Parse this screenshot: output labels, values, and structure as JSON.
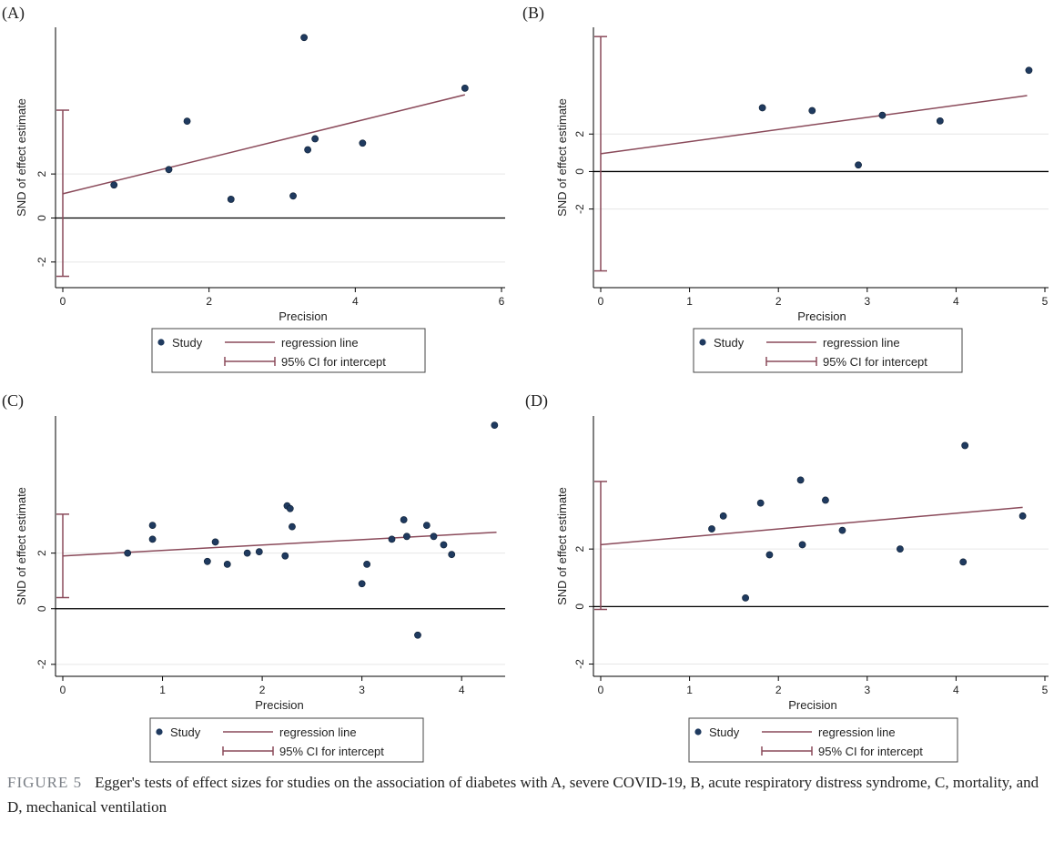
{
  "caption": {
    "label": "FIGURE 5",
    "text": "Egger's tests of effect sizes for studies on the association of diabetes with A, severe COVID-19, B, acute respiratory distress syndrome, C, mortality, and D, mechanical ventilation"
  },
  "colors": {
    "point": "#1f3a5f",
    "regression": "#8a4a5a",
    "ci": "#8a4a5a",
    "zero_line": "#000000",
    "grid": "#e6e6e6",
    "legend_border": "#444444"
  },
  "legend": {
    "study": "Study",
    "regression": "regression line",
    "ci": "95% CI for intercept"
  },
  "chart_data": [
    {
      "panel": "(A)",
      "type": "scatter",
      "xlabel": "Precision",
      "ylabel": "SND of effect estimate",
      "xlim": [
        0,
        6
      ],
      "ylim": [
        -3,
        8.5
      ],
      "xticks": [
        0,
        2,
        4,
        6
      ],
      "yticks": [
        -2,
        0,
        2
      ],
      "grid": true,
      "points": [
        {
          "x": 0.7,
          "y": 1.5
        },
        {
          "x": 1.45,
          "y": 2.2
        },
        {
          "x": 1.7,
          "y": 4.4
        },
        {
          "x": 2.3,
          "y": 0.85
        },
        {
          "x": 3.15,
          "y": 1.0
        },
        {
          "x": 3.3,
          "y": 8.2
        },
        {
          "x": 3.35,
          "y": 3.1
        },
        {
          "x": 3.45,
          "y": 3.6
        },
        {
          "x": 4.1,
          "y": 3.4
        },
        {
          "x": 5.5,
          "y": 5.9
        }
      ],
      "regression": {
        "x": [
          0,
          5.5
        ],
        "y": [
          1.1,
          5.6
        ]
      },
      "ci": [
        -2.65,
        4.9
      ]
    },
    {
      "panel": "(B)",
      "type": "scatter",
      "xlabel": "Precision",
      "ylabel": "SND of effect estimate",
      "xlim": [
        0,
        5
      ],
      "ylim": [
        -6,
        7.5
      ],
      "xticks": [
        0,
        1,
        2,
        3,
        4,
        5
      ],
      "yticks": [
        -2,
        0,
        2
      ],
      "grid": true,
      "points": [
        {
          "x": 1.82,
          "y": 3.4
        },
        {
          "x": 2.38,
          "y": 3.25
        },
        {
          "x": 2.9,
          "y": 0.35
        },
        {
          "x": 3.17,
          "y": 3.0
        },
        {
          "x": 3.82,
          "y": 2.7
        },
        {
          "x": 4.82,
          "y": 5.4
        }
      ],
      "regression": {
        "x": [
          0,
          4.8
        ],
        "y": [
          0.95,
          4.05
        ]
      },
      "ci": [
        -5.3,
        7.2
      ]
    },
    {
      "panel": "(C)",
      "type": "scatter",
      "xlabel": "Precision",
      "ylabel": "SND of effect estimate",
      "xlim": [
        0,
        4.4
      ],
      "ylim": [
        -2.3,
        6.8
      ],
      "xticks": [
        0,
        1,
        2,
        3,
        4
      ],
      "yticks": [
        -2,
        0,
        2
      ],
      "grid": true,
      "points": [
        {
          "x": 0.65,
          "y": 2.0
        },
        {
          "x": 0.9,
          "y": 3.0
        },
        {
          "x": 0.9,
          "y": 2.5
        },
        {
          "x": 1.45,
          "y": 1.7
        },
        {
          "x": 1.53,
          "y": 2.4
        },
        {
          "x": 1.65,
          "y": 1.6
        },
        {
          "x": 1.85,
          "y": 2.0
        },
        {
          "x": 1.97,
          "y": 2.05
        },
        {
          "x": 2.23,
          "y": 1.9
        },
        {
          "x": 2.25,
          "y": 3.7
        },
        {
          "x": 2.28,
          "y": 3.6
        },
        {
          "x": 2.3,
          "y": 2.95
        },
        {
          "x": 3.0,
          "y": 0.9
        },
        {
          "x": 3.05,
          "y": 1.6
        },
        {
          "x": 3.3,
          "y": 2.5
        },
        {
          "x": 3.42,
          "y": 3.2
        },
        {
          "x": 3.45,
          "y": 2.6
        },
        {
          "x": 3.56,
          "y": -0.95
        },
        {
          "x": 3.65,
          "y": 3.0
        },
        {
          "x": 3.72,
          "y": 2.6
        },
        {
          "x": 3.82,
          "y": 2.3
        },
        {
          "x": 3.9,
          "y": 1.95
        },
        {
          "x": 4.33,
          "y": 6.6
        }
      ],
      "regression": {
        "x": [
          0,
          4.35
        ],
        "y": [
          1.9,
          2.75
        ]
      },
      "ci": [
        0.4,
        3.4
      ]
    },
    {
      "panel": "(D)",
      "type": "scatter",
      "xlabel": "Precision",
      "ylabel": "SND of effect estimate",
      "xlim": [
        0,
        5
      ],
      "ylim": [
        -2.3,
        6.5
      ],
      "xticks": [
        0,
        1,
        2,
        3,
        4,
        5
      ],
      "yticks": [
        -2,
        0,
        2
      ],
      "grid": true,
      "points": [
        {
          "x": 1.25,
          "y": 2.7
        },
        {
          "x": 1.38,
          "y": 3.15
        },
        {
          "x": 1.63,
          "y": 0.3
        },
        {
          "x": 1.8,
          "y": 3.6
        },
        {
          "x": 1.9,
          "y": 1.8
        },
        {
          "x": 2.25,
          "y": 4.4
        },
        {
          "x": 2.27,
          "y": 2.15
        },
        {
          "x": 2.53,
          "y": 3.7
        },
        {
          "x": 2.72,
          "y": 2.65
        },
        {
          "x": 3.37,
          "y": 2.0
        },
        {
          "x": 4.08,
          "y": 1.55
        },
        {
          "x": 4.1,
          "y": 5.6
        },
        {
          "x": 4.75,
          "y": 3.15
        }
      ],
      "regression": {
        "x": [
          0,
          4.75
        ],
        "y": [
          2.15,
          3.45
        ]
      },
      "ci": [
        -0.1,
        4.35
      ]
    }
  ]
}
